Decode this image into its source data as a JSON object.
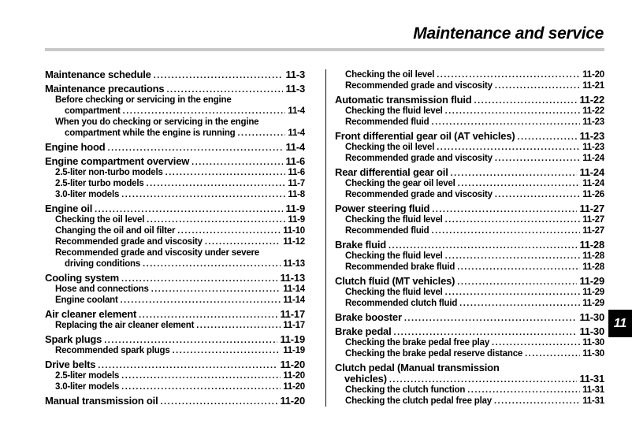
{
  "page": {
    "title": "Maintenance and service",
    "chapter_tab": "11"
  },
  "colors": {
    "text": "#000000",
    "rule_gray": "#c9c9c9",
    "divider": "#111111",
    "tab_bg": "#000000",
    "tab_text": "#ffffff"
  },
  "toc": {
    "left_column": [
      {
        "level": 1,
        "lines": [
          "Maintenance schedule"
        ],
        "page": "11-3"
      },
      {
        "level": 1,
        "lines": [
          "Maintenance precautions"
        ],
        "page": "11-3"
      },
      {
        "level": 2,
        "lines": [
          "Before checking or servicing in the engine",
          "compartment"
        ],
        "page": "11-4"
      },
      {
        "level": 2,
        "lines": [
          "When you do checking or servicing in the engine",
          "compartment while the engine is running"
        ],
        "page": "11-4"
      },
      {
        "level": 1,
        "lines": [
          "Engine hood"
        ],
        "page": "11-4"
      },
      {
        "level": 1,
        "lines": [
          "Engine compartment overview"
        ],
        "page": "11-6"
      },
      {
        "level": 2,
        "lines": [
          "2.5-liter non-turbo models"
        ],
        "page": "11-6"
      },
      {
        "level": 2,
        "lines": [
          "2.5-liter turbo models"
        ],
        "page": "11-7"
      },
      {
        "level": 2,
        "lines": [
          "3.0-liter models"
        ],
        "page": "11-8"
      },
      {
        "level": 1,
        "lines": [
          "Engine oil"
        ],
        "page": "11-9"
      },
      {
        "level": 2,
        "lines": [
          "Checking the oil level"
        ],
        "page": "11-9"
      },
      {
        "level": 2,
        "lines": [
          "Changing the oil and oil filter"
        ],
        "page": "11-10"
      },
      {
        "level": 2,
        "lines": [
          "Recommended grade and viscosity"
        ],
        "page": "11-12"
      },
      {
        "level": 2,
        "lines": [
          "Recommended grade and viscosity under severe",
          "driving conditions"
        ],
        "page": "11-13"
      },
      {
        "level": 1,
        "lines": [
          "Cooling system"
        ],
        "page": "11-13"
      },
      {
        "level": 2,
        "lines": [
          "Hose and connections"
        ],
        "page": "11-14"
      },
      {
        "level": 2,
        "lines": [
          "Engine coolant"
        ],
        "page": "11-14"
      },
      {
        "level": 1,
        "lines": [
          "Air cleaner element"
        ],
        "page": "11-17"
      },
      {
        "level": 2,
        "lines": [
          "Replacing the air cleaner element"
        ],
        "page": "11-17"
      },
      {
        "level": 1,
        "lines": [
          "Spark plugs"
        ],
        "page": "11-19"
      },
      {
        "level": 2,
        "lines": [
          "Recommended spark plugs"
        ],
        "page": "11-19"
      },
      {
        "level": 1,
        "lines": [
          "Drive belts"
        ],
        "page": "11-20"
      },
      {
        "level": 2,
        "lines": [
          "2.5-liter models"
        ],
        "page": "11-20"
      },
      {
        "level": 2,
        "lines": [
          "3.0-liter models"
        ],
        "page": "11-20"
      },
      {
        "level": 1,
        "lines": [
          "Manual transmission oil"
        ],
        "page": "11-20"
      }
    ],
    "right_column": [
      {
        "level": 2,
        "lines": [
          "Checking the oil level"
        ],
        "page": "11-20"
      },
      {
        "level": 2,
        "lines": [
          "Recommended grade and viscosity"
        ],
        "page": "11-21"
      },
      {
        "level": 1,
        "lines": [
          "Automatic transmission fluid"
        ],
        "page": "11-22"
      },
      {
        "level": 2,
        "lines": [
          "Checking the fluid level"
        ],
        "page": "11-22"
      },
      {
        "level": 2,
        "lines": [
          "Recommended fluid"
        ],
        "page": "11-23"
      },
      {
        "level": 1,
        "lines": [
          "Front differential gear oil (AT vehicles)"
        ],
        "page": "11-23"
      },
      {
        "level": 2,
        "lines": [
          "Checking the oil level"
        ],
        "page": "11-23"
      },
      {
        "level": 2,
        "lines": [
          "Recommended grade and viscosity"
        ],
        "page": "11-24"
      },
      {
        "level": 1,
        "lines": [
          "Rear differential gear oil"
        ],
        "page": "11-24"
      },
      {
        "level": 2,
        "lines": [
          "Checking the gear oil level"
        ],
        "page": "11-24"
      },
      {
        "level": 2,
        "lines": [
          "Recommended grade and viscosity"
        ],
        "page": "11-26"
      },
      {
        "level": 1,
        "lines": [
          "Power steering fluid"
        ],
        "page": "11-27"
      },
      {
        "level": 2,
        "lines": [
          "Checking the fluid level"
        ],
        "page": "11-27"
      },
      {
        "level": 2,
        "lines": [
          "Recommended fluid"
        ],
        "page": "11-27"
      },
      {
        "level": 1,
        "lines": [
          "Brake fluid"
        ],
        "page": "11-28"
      },
      {
        "level": 2,
        "lines": [
          "Checking the fluid level"
        ],
        "page": "11-28"
      },
      {
        "level": 2,
        "lines": [
          "Recommended brake fluid"
        ],
        "page": "11-28"
      },
      {
        "level": 1,
        "lines": [
          "Clutch fluid (MT vehicles)"
        ],
        "page": "11-29"
      },
      {
        "level": 2,
        "lines": [
          "Checking the fluid level"
        ],
        "page": "11-29"
      },
      {
        "level": 2,
        "lines": [
          "Recommended clutch fluid"
        ],
        "page": "11-29"
      },
      {
        "level": 1,
        "lines": [
          "Brake booster"
        ],
        "page": "11-30"
      },
      {
        "level": 1,
        "lines": [
          "Brake pedal"
        ],
        "page": "11-30"
      },
      {
        "level": 2,
        "lines": [
          "Checking the brake pedal free play"
        ],
        "page": "11-30"
      },
      {
        "level": 2,
        "lines": [
          "Checking the brake pedal reserve distance"
        ],
        "page": "11-30"
      },
      {
        "level": 1,
        "lines": [
          "Clutch pedal (Manual transmission",
          "vehicles)"
        ],
        "page": "11-31"
      },
      {
        "level": 2,
        "lines": [
          "Checking the clutch function"
        ],
        "page": "11-31"
      },
      {
        "level": 2,
        "lines": [
          "Checking the clutch pedal free play"
        ],
        "page": "11-31"
      }
    ]
  }
}
